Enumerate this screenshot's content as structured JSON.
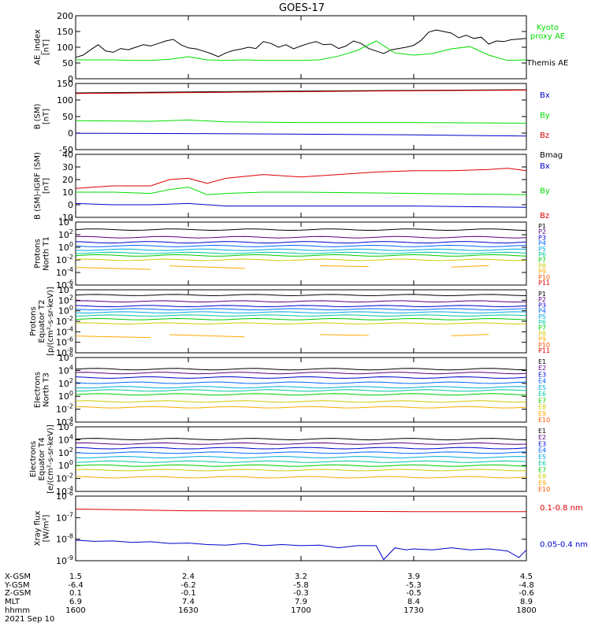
{
  "title": "GOES-17",
  "colors": {
    "black": "#000000",
    "green": "#00dd00",
    "red": "#dd0000",
    "blue": "#0000cc",
    "p_palette": [
      "#000000",
      "#5a0080",
      "#0000cc",
      "#0066ff",
      "#00aadd",
      "#00c8a0",
      "#00cc00",
      "#cccc00",
      "#ffaa00",
      "#ff5500",
      "#dd0000"
    ]
  },
  "chart_data": [
    {
      "type": "line",
      "panel": "ae",
      "ylabel": "AE_index [nT]",
      "yticks": [
        "200",
        "150",
        "100",
        "50",
        "0"
      ],
      "ylim": [
        0,
        200
      ],
      "scale": "linear",
      "legend": [
        {
          "text": "Kyoto proxy AE",
          "color": "green"
        },
        {
          "text": "Themis AE",
          "color": "black"
        }
      ],
      "series": [
        {
          "name": "Themis AE",
          "color": "black",
          "x": [
            1600,
            1602,
            1604,
            1606,
            1608,
            1610,
            1612,
            1614,
            1616,
            1618,
            1620,
            1622,
            1624,
            1626,
            1628,
            1630,
            1632,
            1634,
            1636,
            1638,
            1640,
            1642,
            1644,
            1646,
            1648,
            1650,
            1652,
            1654,
            1656,
            1658,
            1700,
            1702,
            1704,
            1706,
            1708,
            1710,
            1712,
            1714,
            1716,
            1718,
            1720,
            1722,
            1724,
            1726,
            1728,
            1730,
            1732,
            1734,
            1736,
            1738,
            1740,
            1742,
            1744,
            1746,
            1748,
            1750,
            1752,
            1754,
            1756,
            1758,
            1800
          ],
          "y": [
            68,
            75,
            92,
            108,
            88,
            84,
            96,
            92,
            100,
            108,
            104,
            112,
            120,
            125,
            108,
            98,
            95,
            88,
            80,
            70,
            82,
            90,
            94,
            100,
            96,
            118,
            112,
            100,
            108,
            95,
            104,
            112,
            118,
            108,
            110,
            96,
            104,
            120,
            112,
            96,
            88,
            80,
            92,
            96,
            100,
            106,
            122,
            148,
            155,
            150,
            145,
            130,
            138,
            128,
            132,
            110,
            120,
            118,
            124,
            126,
            128
          ]
        },
        {
          "name": "Kyoto proxy AE",
          "color": "green",
          "x": [
            1600,
            1605,
            1610,
            1615,
            1620,
            1625,
            1630,
            1635,
            1640,
            1645,
            1650,
            1655,
            1700,
            1705,
            1710,
            1715,
            1720,
            1725,
            1730,
            1735,
            1740,
            1745,
            1750,
            1755,
            1800
          ],
          "y": [
            60,
            60,
            60,
            58,
            58,
            62,
            70,
            60,
            58,
            60,
            58,
            58,
            58,
            60,
            72,
            90,
            120,
            82,
            75,
            80,
            95,
            102,
            75,
            58,
            60
          ]
        }
      ]
    },
    {
      "type": "line",
      "panel": "b_sm",
      "ylabel": "B (SM) [nT]",
      "yticks": [
        "150",
        "100",
        "50",
        "0",
        "-50"
      ],
      "ylim": [
        -60,
        150
      ],
      "scale": "linear",
      "legend": [
        {
          "text": "Bx",
          "color": "blue"
        },
        {
          "text": "By",
          "color": "green"
        },
        {
          "text": "Bz",
          "color": "red"
        },
        {
          "text": "Bmag",
          "color": "black"
        }
      ],
      "series": [
        {
          "name": "Bmag",
          "color": "black",
          "x": [
            1600,
            1630,
            1700,
            1730,
            1800
          ],
          "y": [
            120,
            123,
            126,
            128,
            130
          ]
        },
        {
          "name": "Bz",
          "color": "red",
          "x": [
            1600,
            1630,
            1700,
            1730,
            1800
          ],
          "y": [
            118,
            121,
            124,
            127,
            129
          ]
        },
        {
          "name": "By",
          "color": "green",
          "x": [
            1600,
            1620,
            1630,
            1640,
            1700,
            1730,
            1800
          ],
          "y": [
            32,
            30,
            34,
            28,
            26,
            26,
            24
          ]
        },
        {
          "name": "Bx",
          "color": "blue",
          "x": [
            1600,
            1630,
            1700,
            1730,
            1800
          ],
          "y": [
            -8,
            -9,
            -11,
            -13,
            -17
          ]
        }
      ]
    },
    {
      "type": "line",
      "panel": "b_igrf",
      "ylabel": "B (SM)-IGRF (SM) [nT]",
      "yticks": [
        "40",
        "30",
        "20",
        "10",
        "0",
        "-10"
      ],
      "ylim": [
        -10,
        40
      ],
      "scale": "linear",
      "legend": [
        {
          "text": "Bx",
          "color": "blue"
        },
        {
          "text": "By",
          "color": "green"
        },
        {
          "text": "Bz",
          "color": "red"
        }
      ],
      "series": [
        {
          "name": "Bz",
          "color": "red",
          "x": [
            1600,
            1610,
            1620,
            1625,
            1630,
            1635,
            1640,
            1650,
            1700,
            1710,
            1720,
            1730,
            1740,
            1750,
            1755,
            1800
          ],
          "y": [
            13,
            15,
            15,
            20,
            21,
            17,
            21,
            24,
            22,
            24,
            26,
            27,
            27,
            28,
            29,
            27
          ]
        },
        {
          "name": "By",
          "color": "green",
          "x": [
            1600,
            1610,
            1620,
            1625,
            1630,
            1635,
            1640,
            1650,
            1700,
            1730,
            1800
          ],
          "y": [
            10,
            10,
            9,
            12,
            14,
            8,
            9,
            10,
            10,
            9,
            8
          ]
        },
        {
          "name": "Bx",
          "color": "blue",
          "x": [
            1600,
            1610,
            1620,
            1630,
            1635,
            1640,
            1650,
            1700,
            1730,
            1800
          ],
          "y": [
            1,
            0,
            0,
            1,
            0,
            -1,
            -1,
            -1,
            -1,
            -2
          ]
        }
      ]
    },
    {
      "type": "line",
      "panel": "protons_t1",
      "ylabel": "Protons North T1",
      "scale": "log",
      "ylim": [
        -6,
        4
      ],
      "yticks": [
        "10^4",
        "10^2",
        "10^0",
        "10^-2",
        "10^-4",
        "10^-6"
      ],
      "legend": [
        "P1",
        "P2",
        "P3",
        "P4",
        "P5",
        "P6",
        "P7",
        "P8",
        "P9",
        "P10",
        "P11"
      ],
      "channel_log_levels": [
        2.8,
        1.6,
        0.8,
        0.2,
        -0.4,
        -0.9,
        -1.3,
        -2.0,
        -3.2,
        null,
        null
      ]
    },
    {
      "type": "line",
      "panel": "protons_t2",
      "ylabel": "Protons Equator T2 [p/(cm²-s-sr-keV)]",
      "scale": "log",
      "ylim": [
        -8,
        4
      ],
      "yticks": [
        "10^4",
        "10^2",
        "10^0",
        "10^-2",
        "10^-4",
        "10^-6",
        "10^-8"
      ],
      "legend": [
        "P1",
        "P2",
        "P3",
        "P4",
        "P5",
        "P6",
        "P7",
        "P8",
        "P9",
        "P10",
        "P11"
      ],
      "channel_log_levels": [
        3.0,
        1.8,
        0.9,
        0.3,
        -0.3,
        -0.9,
        -1.6,
        -2.4,
        -4.8,
        null,
        null
      ]
    },
    {
      "type": "line",
      "panel": "electrons_t3",
      "ylabel": "Electrons North T3",
      "scale": "log",
      "ylim": [
        -4,
        6
      ],
      "yticks": [
        "10^6",
        "10^4",
        "10^2",
        "10^0",
        "10^-2",
        "10^-4"
      ],
      "legend": [
        "E1",
        "E2",
        "E3",
        "E4",
        "E5",
        "E6",
        "E7",
        "E8",
        "E9",
        "E10"
      ],
      "channel_log_levels": [
        4.2,
        3.6,
        2.9,
        2.1,
        1.4,
        0.9,
        0.3,
        -0.8,
        -1.7,
        null
      ]
    },
    {
      "type": "line",
      "panel": "electrons_t4",
      "ylabel": "Electrons Equator T4 [e/(cm²-s-sr-keV)]",
      "scale": "log",
      "ylim": [
        -4,
        6
      ],
      "yticks": [
        "10^6",
        "10^4",
        "10^2",
        "10^0",
        "10^-2",
        "10^-4"
      ],
      "legend": [
        "E1",
        "E2",
        "E3",
        "E4",
        "E5",
        "E6",
        "E7",
        "E8",
        "E9",
        "E10"
      ],
      "channel_log_levels": [
        4.1,
        3.4,
        2.7,
        2.0,
        1.3,
        0.6,
        0.0,
        -0.7,
        -1.8,
        null
      ]
    },
    {
      "type": "line",
      "panel": "xray",
      "ylabel": "Xray flux [W/m²]",
      "scale": "log",
      "ylim": [
        -9,
        -6
      ],
      "yticks": [
        "10^-6",
        "10^-7",
        "10^-8",
        "10^-9"
      ],
      "legend": [
        {
          "text": "0.1-0.8 nm",
          "color": "red"
        },
        {
          "text": "0.05-0.4 nm",
          "color": "blue"
        }
      ],
      "series": [
        {
          "name": "0.1-0.8 nm",
          "color": "red",
          "x": [
            1600,
            1630,
            1700,
            1730,
            1800
          ],
          "y_log": [
            -6.6,
            -6.68,
            -6.7,
            -6.72,
            -6.72
          ]
        },
        {
          "name": "0.05-0.4 nm",
          "color": "blue",
          "x": [
            1600,
            1605,
            1610,
            1615,
            1620,
            1625,
            1630,
            1635,
            1640,
            1645,
            1650,
            1655,
            1700,
            1705,
            1710,
            1715,
            1720,
            1722,
            1725,
            1728,
            1730,
            1735,
            1740,
            1745,
            1750,
            1755,
            1758,
            1800
          ],
          "y_log": [
            -8.05,
            -8.1,
            -8.08,
            -8.15,
            -8.12,
            -8.2,
            -8.18,
            -8.25,
            -8.28,
            -8.2,
            -8.3,
            -8.25,
            -8.3,
            -8.28,
            -8.4,
            -8.3,
            -8.3,
            -8.95,
            -8.4,
            -8.5,
            -8.45,
            -8.5,
            -8.4,
            -8.5,
            -8.45,
            -8.55,
            -8.85,
            -8.5
          ]
        }
      ]
    }
  ],
  "xaxis": {
    "ticks": [
      {
        "xgsm": "1.5",
        "ygsm": "-6.4",
        "zgsm": "0.1",
        "mlt": "6.9",
        "hhmm": "1600"
      },
      {
        "xgsm": "2.4",
        "ygsm": "-6.2",
        "zgsm": "-0.1",
        "mlt": "7.4",
        "hhmm": "1630"
      },
      {
        "xgsm": "3.2",
        "ygsm": "-5.8",
        "zgsm": "-0.3",
        "mlt": "7.9",
        "hhmm": "1700"
      },
      {
        "xgsm": "3.9",
        "ygsm": "-5.3",
        "zgsm": "-0.5",
        "mlt": "8.4",
        "hhmm": "1730"
      },
      {
        "xgsm": "4.5",
        "ygsm": "-4.8",
        "zgsm": "-0.6",
        "mlt": "8.9",
        "hhmm": "1800"
      }
    ],
    "row_labels": [
      "X-GSM",
      "Y-GSM",
      "Z-GSM",
      "MLT",
      "hhmm"
    ],
    "date": "2021 Sep 10"
  }
}
